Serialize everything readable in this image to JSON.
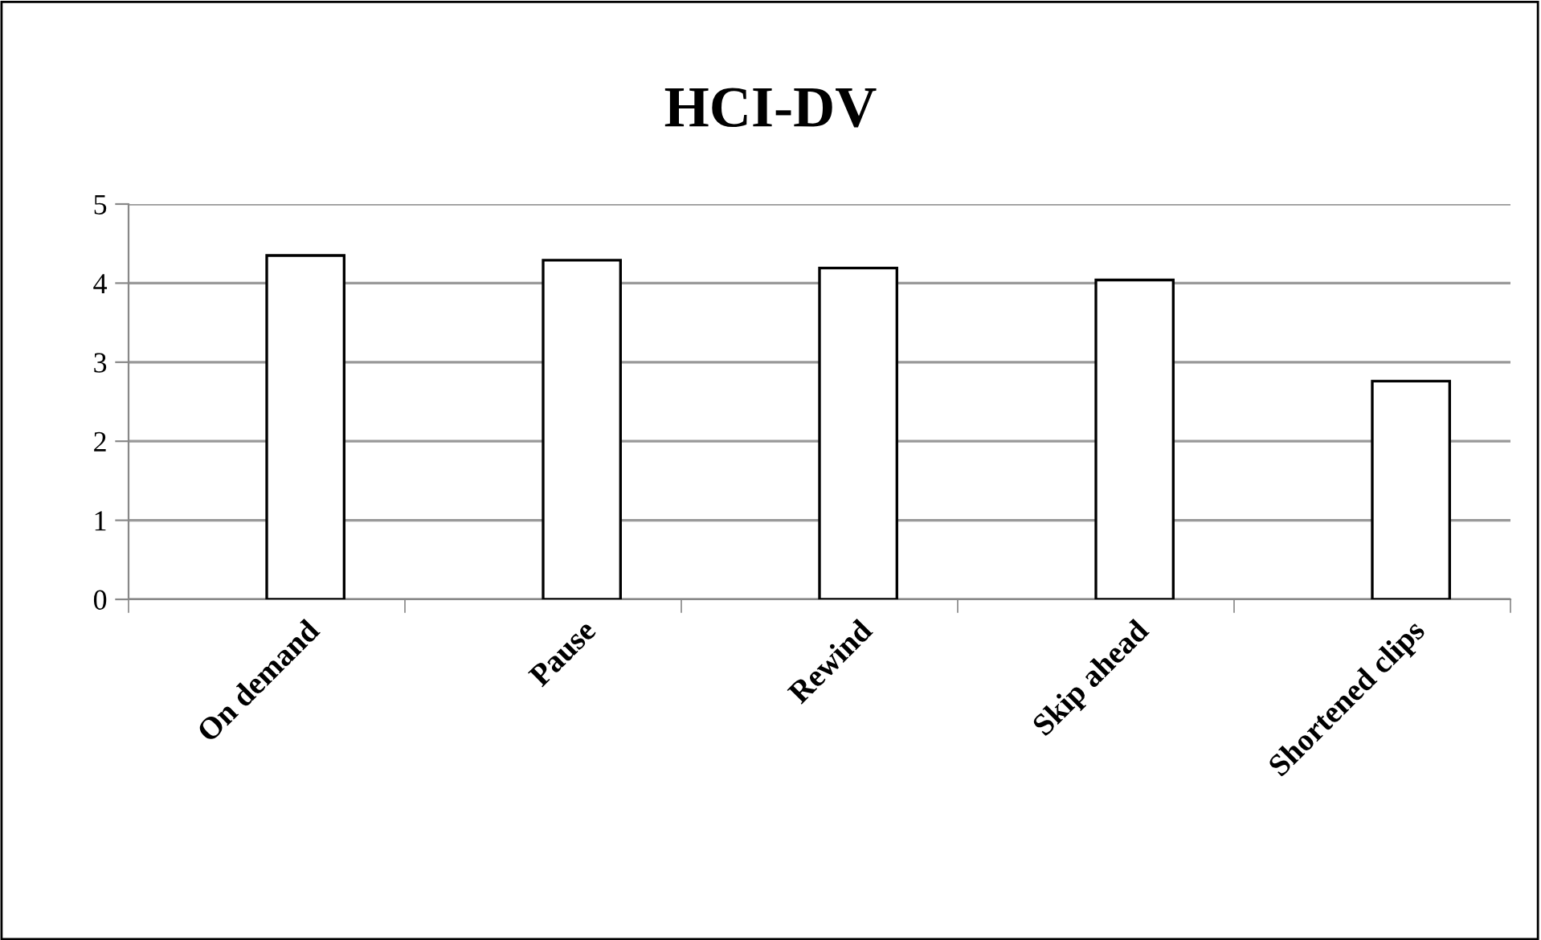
{
  "chart_data": {
    "type": "bar",
    "title": "HCI-DV",
    "categories": [
      "On demand",
      "Pause",
      "Rewind",
      "Skip ahead",
      "Shortened clips"
    ],
    "values": [
      4.35,
      4.29,
      4.19,
      4.04,
      2.76
    ],
    "color": "#ffffff",
    "ylim": [
      0,
      5
    ],
    "yticks": [
      0,
      1,
      2,
      3,
      4,
      5
    ],
    "grid": "y"
  }
}
